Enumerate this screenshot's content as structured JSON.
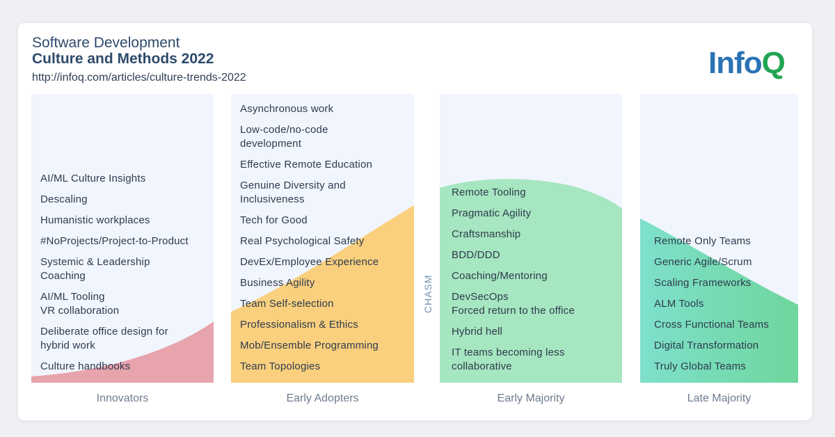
{
  "header": {
    "title_line1": "Software Development",
    "title_line2": "Culture and Methods 2022",
    "url": "http://infoq.com/articles/culture-trends-2022"
  },
  "logo": {
    "text_main": "Info",
    "text_accent": "Q"
  },
  "chasm_label": "CHASM",
  "colors": {
    "innovators": "#e8a4ad",
    "early_adopters": "#fad07e",
    "early_majority": "#a6e6c0",
    "late_majority_start": "#7ee0cc",
    "late_majority_end": "#6fd69c",
    "panel_bg": "#f1f5fd",
    "title": "#2d4a6b"
  },
  "columns": [
    {
      "label": "Innovators",
      "items": [
        "AI/ML Culture Insights",
        "Descaling",
        "Humanistic workplaces",
        "#NoProjects/Project-to-Product",
        "Systemic & Leadership",
        "Coaching",
        "AI/ML Tooling",
        "VR collaboration",
        "Deliberate office design for",
        "hybrid work",
        "Culture handbooks"
      ]
    },
    {
      "label": "Early Adopters",
      "items": [
        "Asynchronous work",
        "Low-code/no-code",
        "development",
        "Effective Remote Education",
        "Genuine Diversity and",
        "Inclusiveness",
        "Tech for Good",
        "Real Psychological Safety",
        "DevEx/Employee Experience",
        "Business Agility",
        "Team Self-selection",
        "Professionalism & Ethics",
        "Mob/Ensemble Programming",
        "Team Topologies"
      ]
    },
    {
      "label": "Early Majority",
      "items": [
        "Remote Tooling",
        "Pragmatic Agility",
        "Craftsmanship",
        "BDD/DDD",
        "Coaching/Mentoring",
        "DevSecOps",
        "Forced return to the office",
        "Hybrid hell",
        "IT teams becoming less",
        "collaborative"
      ]
    },
    {
      "label": "Late Majority",
      "items": [
        "Remote Only Teams",
        "Generic Agile/Scrum",
        "Scaling Frameworks",
        "ALM Tools",
        "Cross Functional Teams",
        "Digital Transformation",
        "Truly Global Teams"
      ]
    }
  ]
}
